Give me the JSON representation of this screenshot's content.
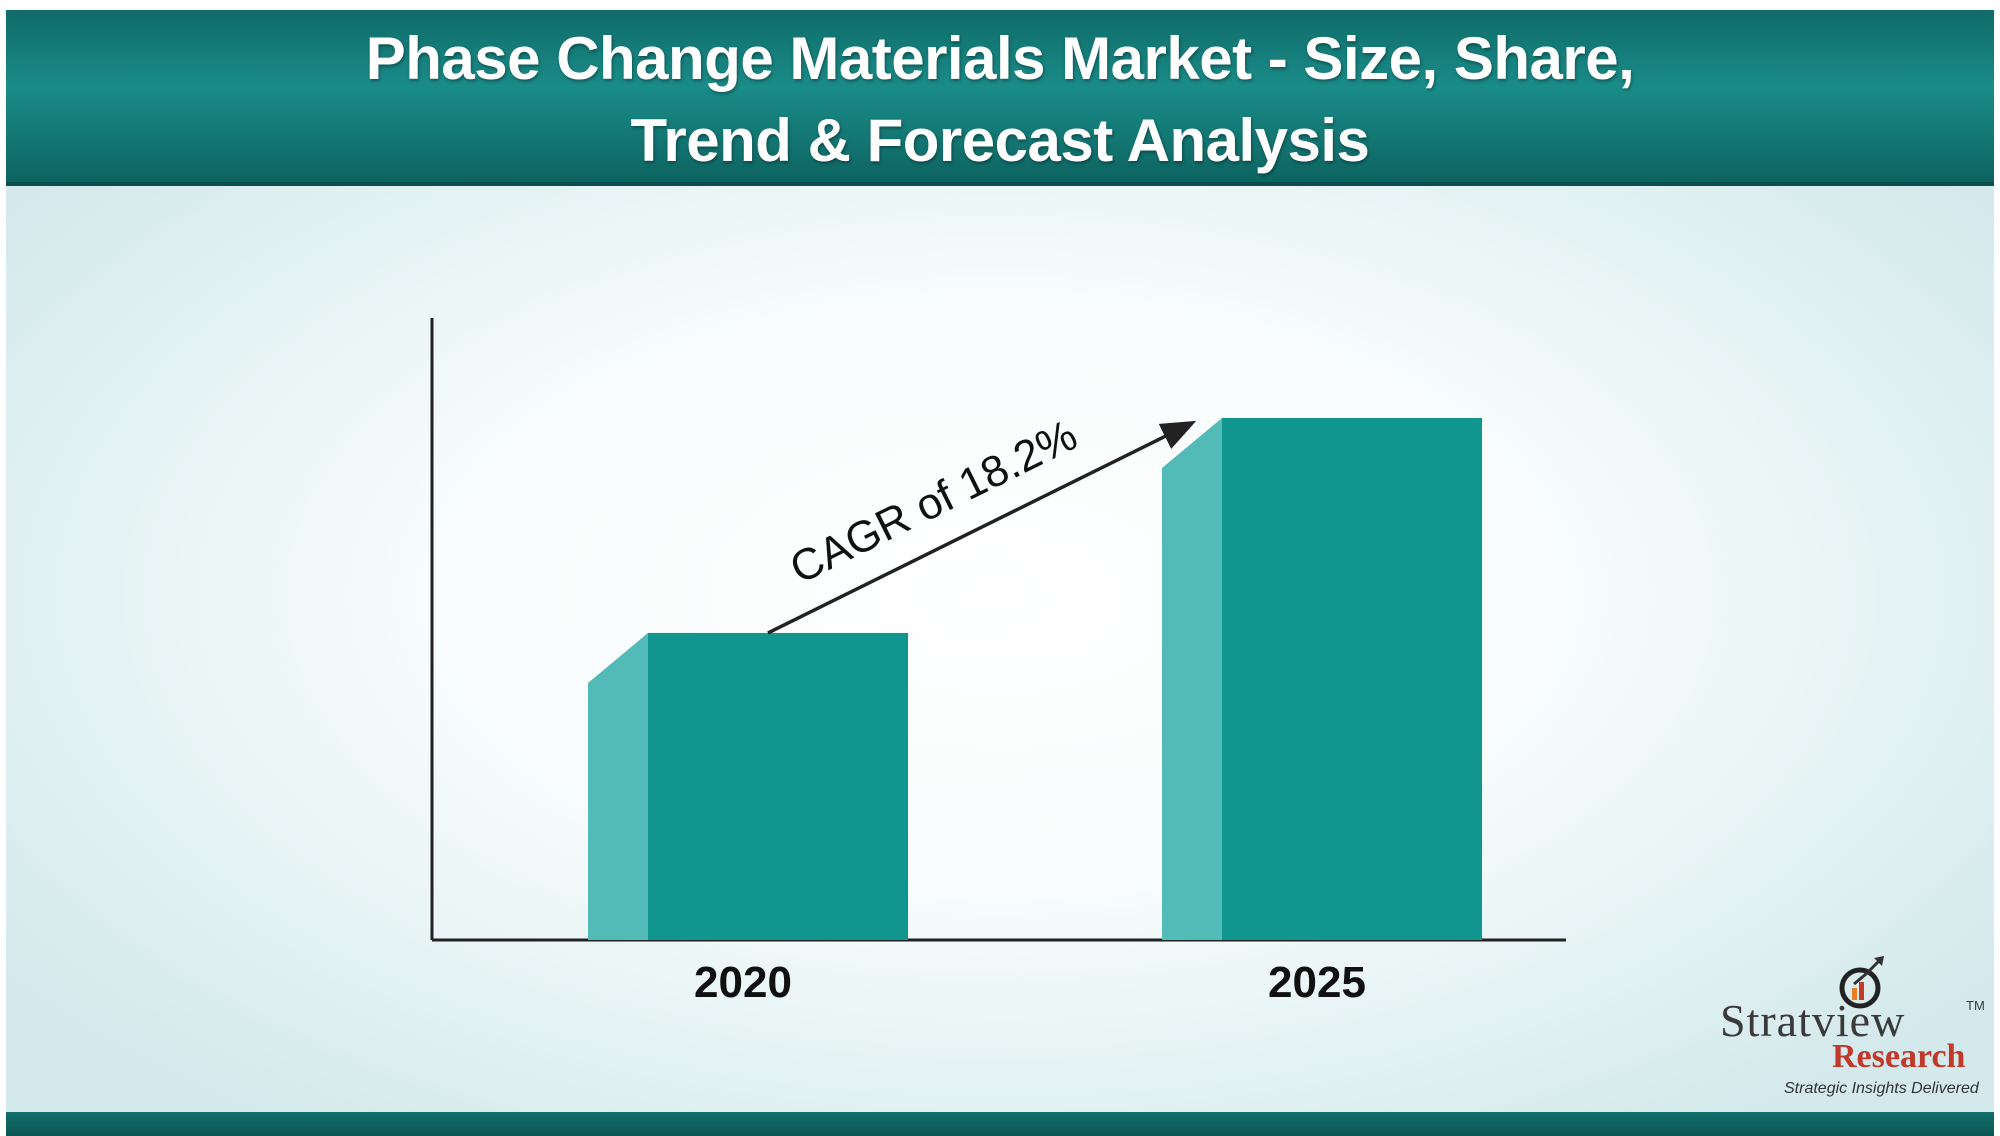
{
  "header": {
    "title_line1": "Phase Change Materials Market - Size, Share,",
    "title_line2": "Trend & Forecast Analysis"
  },
  "colors": {
    "bar_front": "#10958f",
    "bar_side": "#52bbb7",
    "header": "#157e7a",
    "axis": "#222222"
  },
  "chart_data": {
    "type": "bar",
    "categories": [
      "2020",
      "2025"
    ],
    "values": [
      1,
      1.7
    ],
    "annotation": "CAGR of 18.2%",
    "title": "",
    "xlabel": "",
    "ylabel": "",
    "grid": false
  },
  "logo": {
    "name_prefix": "Strat",
    "name_suffix": "view",
    "name": "Stratview",
    "tm": "TM",
    "research": "Research",
    "tagline": "Strategic Insights Delivered"
  }
}
